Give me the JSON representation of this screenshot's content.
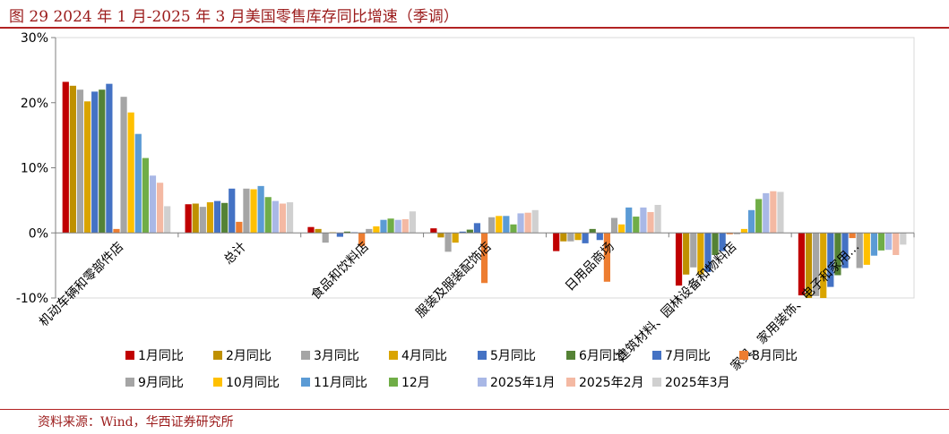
{
  "figure": {
    "title": "图 29   2024 年 1 月-2025 年 3 月美国零售库存同比增速（季调）",
    "source": "资料来源：Wind，华西证券研究所"
  },
  "chart_data": {
    "type": "bar",
    "title": "",
    "xlabel": "",
    "ylabel": "",
    "ylim": [
      -10,
      30
    ],
    "yticks": [
      -10,
      0,
      10,
      20,
      30
    ],
    "ytick_labels": [
      "-10%",
      "0%",
      "10%",
      "20%",
      "30%"
    ],
    "grid": false,
    "legend_position": "bottom",
    "categories": [
      "机动车辆和零部件店",
      "总计",
      "食品和饮料店",
      "服装及服装配饰店",
      "日用品商场",
      "建筑材料、园林设备和物料店",
      "家具、家用装饰、电子和家用…"
    ],
    "series": [
      {
        "name": "1月同比",
        "color": "#c00000",
        "values": [
          23.2,
          4.4,
          0.9,
          0.7,
          -2.8,
          -8.1,
          -9.6
        ]
      },
      {
        "name": "2月同比",
        "color": "#bf9000",
        "values": [
          22.6,
          4.5,
          0.6,
          -0.7,
          -1.3,
          -6.4,
          -10.0
        ]
      },
      {
        "name": "3月同比",
        "color": "#a5a5a5",
        "values": [
          22.0,
          4.0,
          -1.5,
          -2.9,
          -1.3,
          -5.3,
          -9.7
        ]
      },
      {
        "name": "4月同比",
        "color": "#d9a400",
        "values": [
          20.2,
          4.7,
          0.1,
          -1.5,
          -1.1,
          -6.4,
          -10.0
        ]
      },
      {
        "name": "5月同比",
        "color": "#4472c4",
        "values": [
          21.7,
          4.9,
          -0.6,
          0.2,
          -1.6,
          -6.0,
          -8.3
        ]
      },
      {
        "name": "6月同比",
        "color": "#548235",
        "values": [
          22.0,
          4.6,
          0.2,
          0.5,
          0.6,
          -3.4,
          -6.5
        ]
      },
      {
        "name": "7月同比",
        "color": "#4472c4",
        "values": [
          22.9,
          6.8,
          0.1,
          1.5,
          -1.1,
          -2.8,
          -5.4
        ]
      },
      {
        "name": "8月同比",
        "color": "#ed7d31",
        "values": [
          0.6,
          1.7,
          -2.0,
          -7.7,
          -7.5,
          -0.2,
          -0.8
        ]
      },
      {
        "name": "9月同比",
        "color": "#a5a5a5",
        "values": [
          20.9,
          6.8,
          0.6,
          2.4,
          2.3,
          -0.2,
          -5.4
        ]
      },
      {
        "name": "10月同比",
        "color": "#ffc000",
        "values": [
          18.5,
          6.7,
          1.0,
          2.6,
          1.3,
          0.6,
          -4.9
        ]
      },
      {
        "name": "11月同比",
        "color": "#5b9bd5",
        "values": [
          15.2,
          7.2,
          2.0,
          2.6,
          3.9,
          3.5,
          -3.5
        ]
      },
      {
        "name": "12月",
        "color": "#70ad47",
        "values": [
          11.5,
          5.5,
          2.2,
          1.3,
          2.5,
          5.2,
          -2.7
        ]
      },
      {
        "name": "2025年1月",
        "color": "#a9b8e6",
        "values": [
          8.8,
          4.9,
          2.0,
          3.0,
          3.9,
          6.1,
          -2.6
        ]
      },
      {
        "name": "2025年2月",
        "color": "#f4b9a3",
        "values": [
          7.7,
          4.5,
          2.1,
          3.1,
          3.2,
          6.4,
          -3.4
        ]
      },
      {
        "name": "2025年3月",
        "color": "#d0d0d0",
        "values": [
          4.1,
          4.7,
          3.3,
          3.5,
          4.3,
          6.3,
          -1.8
        ]
      }
    ]
  }
}
